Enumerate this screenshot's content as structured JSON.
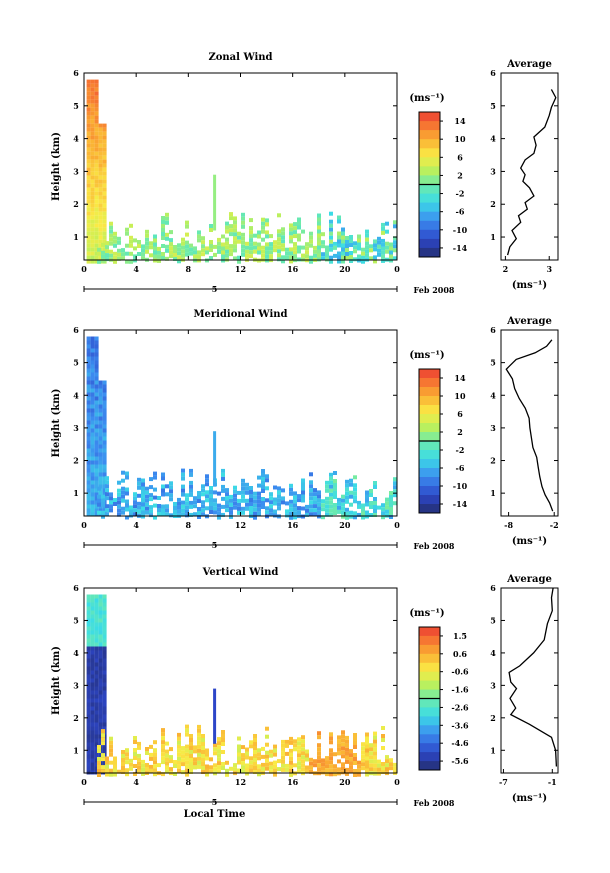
{
  "chart_data": [
    {
      "type": "heatmap",
      "title": "Zonal Wind",
      "ylabel": "Height (km)",
      "xlabel": "",
      "x_ticks": [
        "0",
        "4",
        "8",
        "12",
        "16",
        "20",
        "0"
      ],
      "y_ticks": [
        "1",
        "2",
        "3",
        "4",
        "5",
        "6"
      ],
      "xlim": [
        0,
        24
      ],
      "ylim": [
        0.3,
        6
      ],
      "date_day": "5",
      "date_label": "Feb 2008",
      "colorbar": {
        "unit": "(ms⁻¹)",
        "ticks": [
          "14",
          "10",
          "6",
          "2",
          "-2",
          "-6",
          "-10",
          "-14"
        ],
        "range": [
          -16,
          16
        ]
      },
      "profile": {
        "title": "Average",
        "xlabel": "(ms⁻¹)",
        "x_ticks": [
          "2",
          "3"
        ],
        "xlim": [
          1.9,
          3.2
        ],
        "y_ticks": [
          "1",
          "2",
          "3",
          "4",
          "5",
          "6"
        ],
        "ylim": [
          0.3,
          6
        ],
        "points": [
          [
            2.05,
            0.45
          ],
          [
            2.1,
            0.7
          ],
          [
            2.25,
            0.95
          ],
          [
            2.15,
            1.2
          ],
          [
            2.35,
            1.45
          ],
          [
            2.3,
            1.65
          ],
          [
            2.5,
            1.85
          ],
          [
            2.45,
            2.05
          ],
          [
            2.65,
            2.25
          ],
          [
            2.55,
            2.5
          ],
          [
            2.4,
            2.7
          ],
          [
            2.45,
            2.9
          ],
          [
            2.35,
            3.1
          ],
          [
            2.45,
            3.35
          ],
          [
            2.65,
            3.55
          ],
          [
            2.7,
            3.8
          ],
          [
            2.65,
            4.05
          ],
          [
            2.9,
            4.35
          ],
          [
            3.0,
            4.7
          ],
          [
            3.05,
            4.95
          ],
          [
            3.15,
            5.25
          ],
          [
            3.05,
            5.5
          ]
        ]
      }
    },
    {
      "type": "heatmap",
      "title": "Meridional Wind",
      "ylabel": "Height (km)",
      "xlabel": "",
      "x_ticks": [
        "0",
        "4",
        "8",
        "12",
        "16",
        "20",
        "0"
      ],
      "y_ticks": [
        "1",
        "2",
        "3",
        "4",
        "5",
        "6"
      ],
      "xlim": [
        0,
        24
      ],
      "ylim": [
        0.3,
        6
      ],
      "date_day": "5",
      "date_label": "Feb 2008",
      "colorbar": {
        "unit": "(ms⁻¹)",
        "ticks": [
          "14",
          "10",
          "6",
          "2",
          "-2",
          "-6",
          "-10",
          "-14"
        ],
        "range": [
          -16,
          16
        ]
      },
      "profile": {
        "title": "Average",
        "xlabel": "(ms⁻¹)",
        "x_ticks": [
          "-8",
          "-2"
        ],
        "xlim": [
          -9.0,
          -1.5
        ],
        "y_ticks": [
          "1",
          "2",
          "3",
          "4",
          "5",
          "6"
        ],
        "ylim": [
          0.3,
          6
        ],
        "points": [
          [
            -2.2,
            0.45
          ],
          [
            -2.6,
            0.7
          ],
          [
            -3.2,
            0.95
          ],
          [
            -3.6,
            1.2
          ],
          [
            -3.9,
            1.5
          ],
          [
            -4.1,
            1.8
          ],
          [
            -4.3,
            2.1
          ],
          [
            -4.8,
            2.4
          ],
          [
            -5.0,
            2.7
          ],
          [
            -5.2,
            3.0
          ],
          [
            -5.3,
            3.3
          ],
          [
            -5.8,
            3.6
          ],
          [
            -6.6,
            3.9
          ],
          [
            -7.2,
            4.2
          ],
          [
            -7.5,
            4.5
          ],
          [
            -8.3,
            4.8
          ],
          [
            -7.0,
            5.1
          ],
          [
            -4.5,
            5.3
          ],
          [
            -3.0,
            5.5
          ],
          [
            -2.3,
            5.7
          ]
        ]
      }
    },
    {
      "type": "heatmap",
      "title": "Vertical Wind",
      "ylabel": "Height (km)",
      "xlabel": "Local Time",
      "x_ticks": [
        "0",
        "4",
        "8",
        "12",
        "16",
        "20",
        "0"
      ],
      "y_ticks": [
        "1",
        "2",
        "3",
        "4",
        "5",
        "6"
      ],
      "xlim": [
        0,
        24
      ],
      "ylim": [
        0.3,
        6
      ],
      "date_day": "5",
      "date_label": "Feb 2008",
      "colorbar": {
        "unit": "(ms⁻¹)",
        "ticks": [
          "1.5",
          "0.6",
          "-0.6",
          "-1.6",
          "-2.6",
          "-3.6",
          "-4.6",
          "-5.6"
        ],
        "range": [
          -6.1,
          2.1
        ]
      },
      "profile": {
        "title": "Average",
        "xlabel": "(ms⁻¹)",
        "x_ticks": [
          "-7",
          "-1"
        ],
        "xlim": [
          -7.3,
          -0.3
        ],
        "y_ticks": [
          "1",
          "2",
          "3",
          "4",
          "5",
          "6"
        ],
        "ylim": [
          0.3,
          6
        ],
        "points": [
          [
            -0.5,
            0.5
          ],
          [
            -0.6,
            1.0
          ],
          [
            -1.1,
            1.4
          ],
          [
            -3.8,
            1.8
          ],
          [
            -6.1,
            2.1
          ],
          [
            -5.5,
            2.3
          ],
          [
            -6.2,
            2.6
          ],
          [
            -5.4,
            2.9
          ],
          [
            -6.1,
            3.1
          ],
          [
            -6.3,
            3.4
          ],
          [
            -5.0,
            3.6
          ],
          [
            -3.3,
            4.0
          ],
          [
            -2.0,
            4.4
          ],
          [
            -1.6,
            4.9
          ],
          [
            -1.0,
            5.3
          ],
          [
            -1.1,
            5.7
          ],
          [
            -0.9,
            6.0
          ]
        ]
      }
    }
  ]
}
